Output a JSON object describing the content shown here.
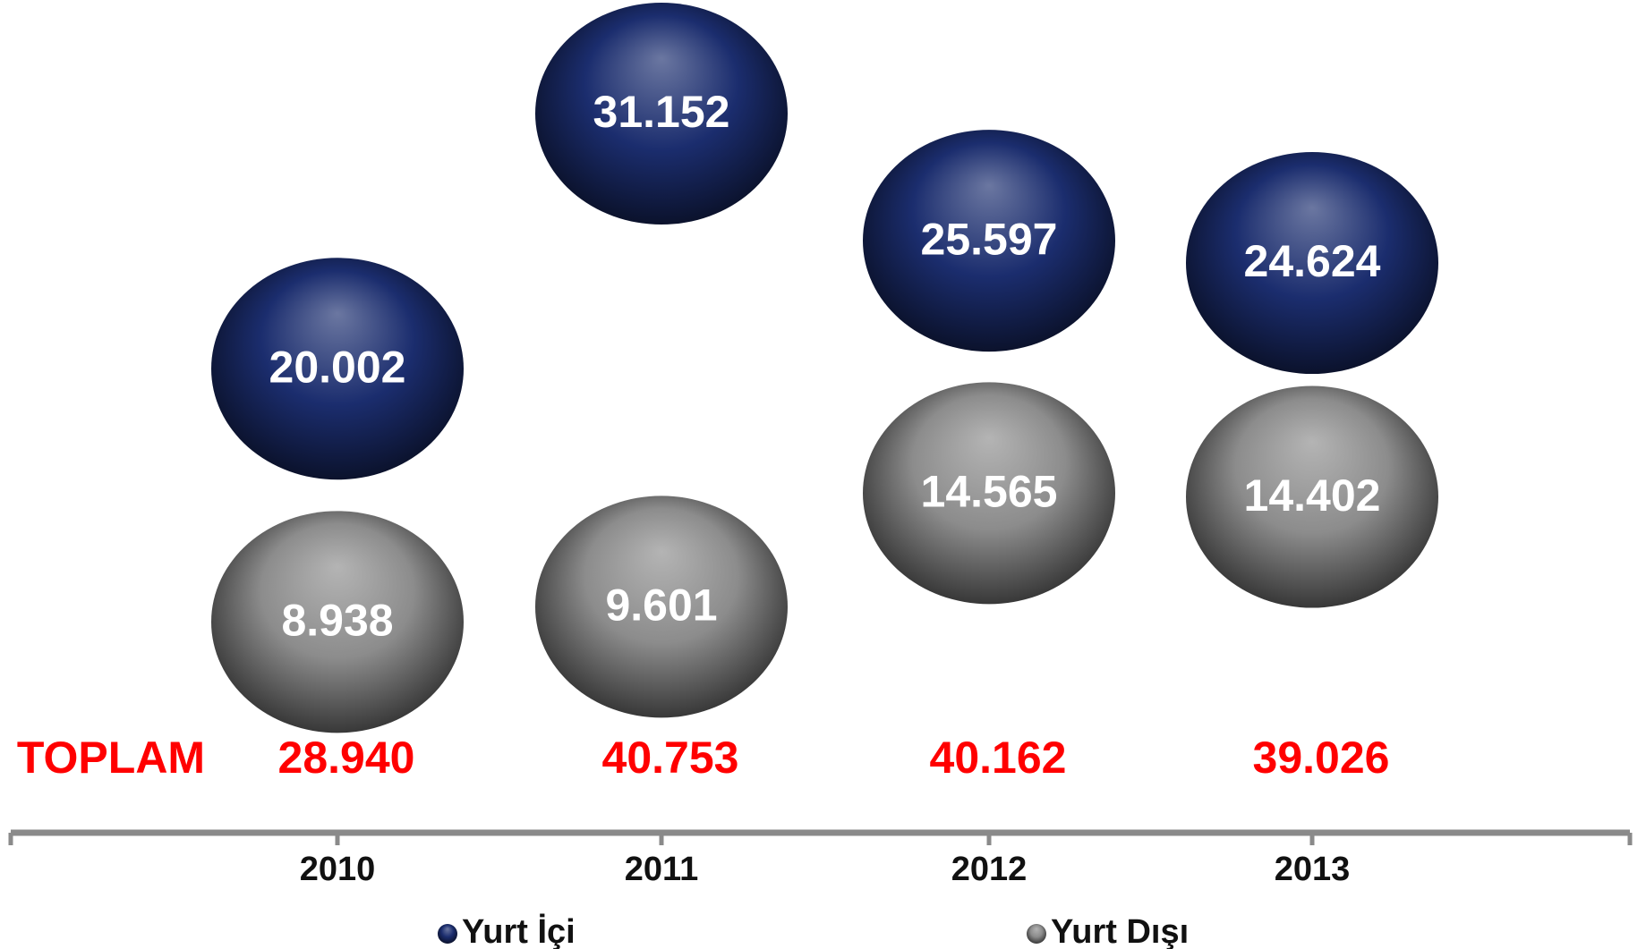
{
  "chart_data": {
    "type": "bubble",
    "categories": [
      "2010",
      "2011",
      "2012",
      "2013"
    ],
    "series": [
      {
        "name": "Yurt İçi",
        "color": "#1b2d6e",
        "values": [
          20002,
          31152,
          25597,
          24624
        ],
        "value_labels": [
          "20.002",
          "31.152",
          "25.597",
          "24.624"
        ]
      },
      {
        "name": "Yurt Dışı",
        "color": "#8c8c8c",
        "values": [
          8938,
          9601,
          14565,
          14402
        ],
        "value_labels": [
          "8.938",
          "9.601",
          "14.565",
          "14.402"
        ]
      }
    ],
    "total_label": "TOPLAM",
    "totals": [
      28940,
      40753,
      40162,
      39026
    ],
    "total_labels": [
      "28.940",
      "40.753",
      "40.162",
      "39.026"
    ],
    "total_color": "#ff0000",
    "ylim": [
      0,
      36000
    ]
  }
}
